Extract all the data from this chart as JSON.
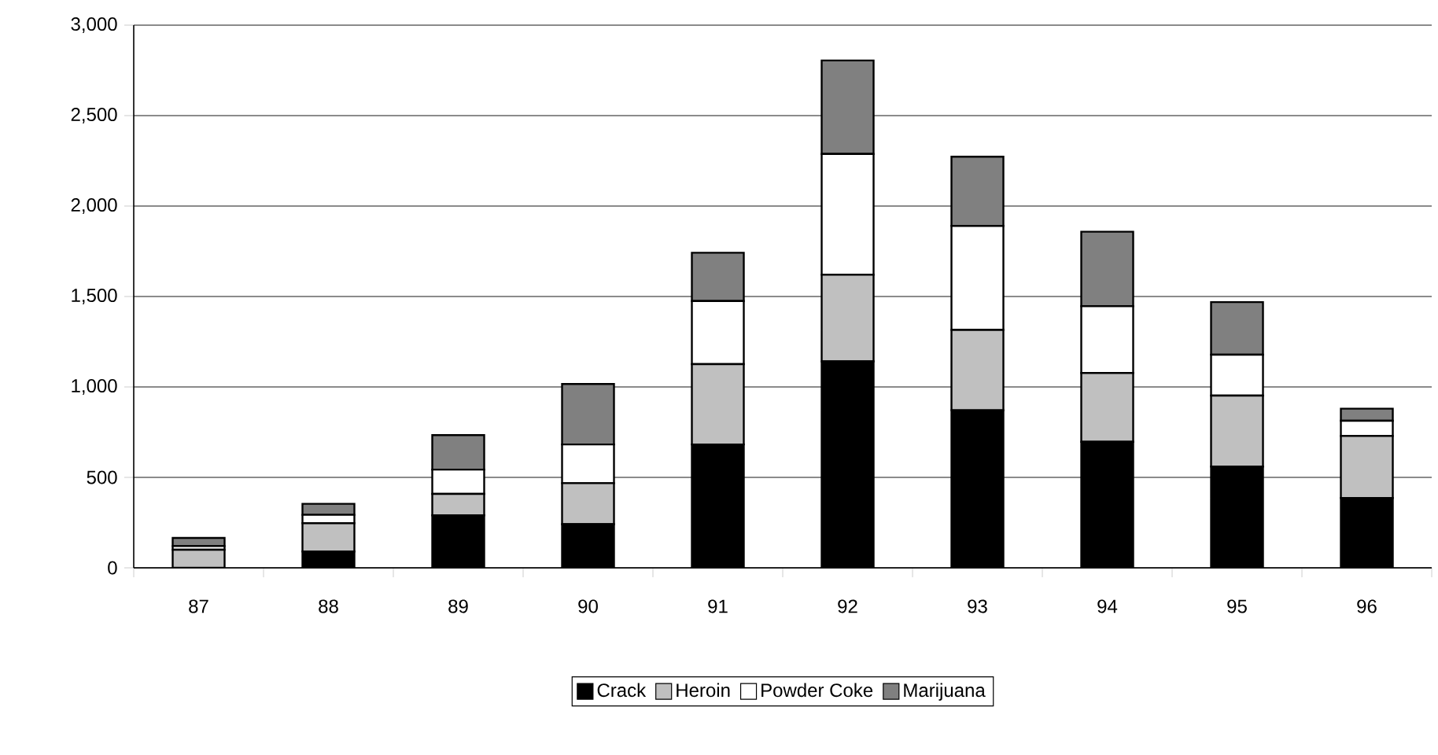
{
  "chart_data": {
    "type": "bar",
    "stacked": true,
    "categories": [
      "87",
      "88",
      "89",
      "90",
      "91",
      "92",
      "93",
      "94",
      "95",
      "96"
    ],
    "series": [
      {
        "name": "Crack",
        "color": "#000000",
        "values": [
          null,
          90,
          290,
          241,
          682,
          1141,
          871,
          697,
          560,
          386
        ]
      },
      {
        "name": "Heroin",
        "color": "#c0c0c0",
        "values": [
          100,
          157,
          119,
          227,
          444,
          479,
          444,
          380,
          392,
          343
        ]
      },
      {
        "name": "Powder Coke",
        "color": "#ffffff",
        "values": [
          20,
          46,
          134,
          214,
          349,
          668,
          575,
          369,
          226,
          84
        ]
      },
      {
        "name": "Marijuana",
        "color": "#808080",
        "values": [
          45,
          61,
          191,
          334,
          267,
          517,
          383,
          412,
          291,
          67
        ]
      }
    ],
    "ylim": [
      0,
      3000
    ],
    "yticks": [
      0,
      500,
      {
        "value": 1000,
        "label": "1,000"
      },
      {
        "value": 1500,
        "label": "1,500"
      },
      {
        "value": 2000,
        "label": "2,000"
      },
      {
        "value": 2500,
        "label": "2,500"
      },
      {
        "value": 3000,
        "label": "3,000"
      }
    ],
    "grid": "y",
    "legend": "bottom"
  }
}
